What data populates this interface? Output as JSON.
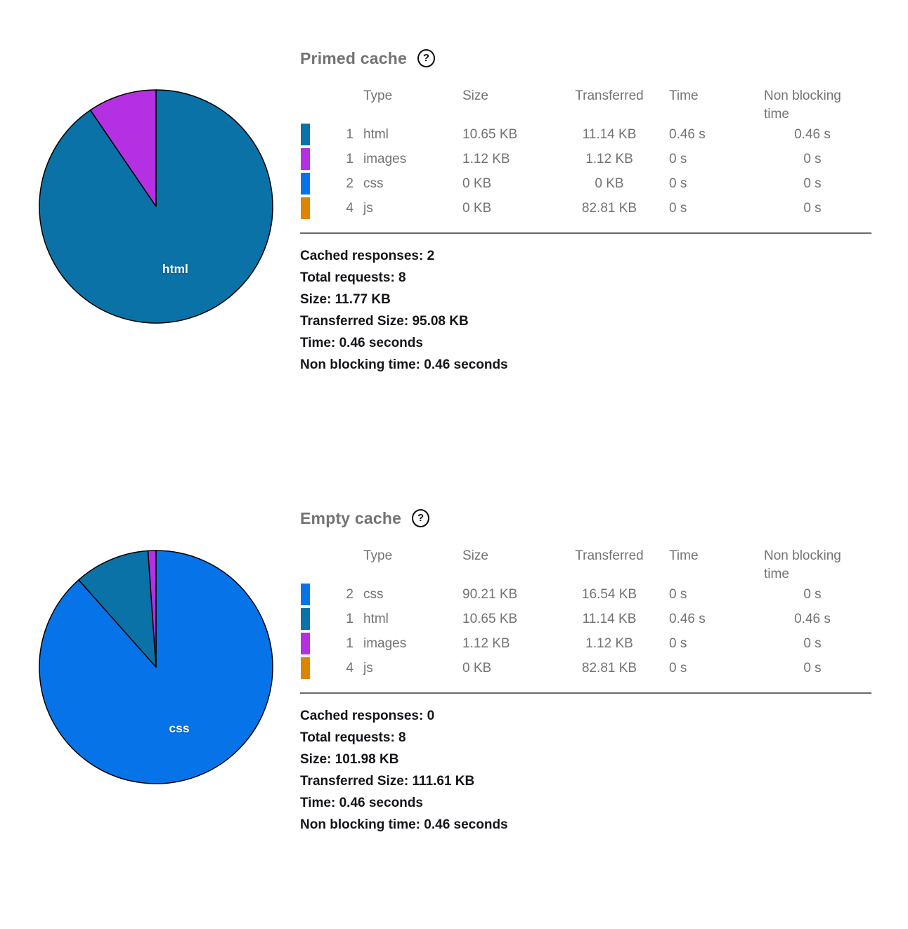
{
  "page": {
    "background": "#ffffff"
  },
  "colors": {
    "type_html": "#0a72a6",
    "type_images": "#b52fe3",
    "type_css": "#0674e8",
    "type_js": "#dd8400",
    "text_muted": "#737373",
    "text_dark": "#15141a",
    "divider": "#6a6a6d",
    "pie_stroke": "#000000",
    "pie_label": "#ffffff"
  },
  "sections": [
    {
      "title": "Primed cache",
      "help_icon": "?",
      "table": {
        "columns": [
          "Type",
          "Size",
          "Transferred",
          "Time",
          "Non blocking time"
        ],
        "rows": [
          {
            "count": "1",
            "type": "html",
            "size": "10.65 KB",
            "transferred": "11.14 KB",
            "time": "0.46 s",
            "non_blocking_time": "0.46 s",
            "color": "#0a72a6"
          },
          {
            "count": "1",
            "type": "images",
            "size": "1.12 KB",
            "transferred": "1.12 KB",
            "time": "0 s",
            "non_blocking_time": "0 s",
            "color": "#b52fe3"
          },
          {
            "count": "2",
            "type": "css",
            "size": "0 KB",
            "transferred": "0 KB",
            "time": "0 s",
            "non_blocking_time": "0 s",
            "color": "#0674e8"
          },
          {
            "count": "4",
            "type": "js",
            "size": "0 KB",
            "transferred": "82.81 KB",
            "time": "0 s",
            "non_blocking_time": "0 s",
            "color": "#dd8400"
          }
        ]
      },
      "summary": [
        "Cached responses: 2",
        "Total requests: 8",
        "Size: 11.77 KB",
        "Transferred Size: 95.08 KB",
        "Time: 0.46 seconds",
        "Non blocking time: 0.46 seconds"
      ]
    },
    {
      "title": "Empty cache",
      "help_icon": "?",
      "table": {
        "columns": [
          "Type",
          "Size",
          "Transferred",
          "Time",
          "Non blocking time"
        ],
        "rows": [
          {
            "count": "2",
            "type": "css",
            "size": "90.21 KB",
            "transferred": "16.54 KB",
            "time": "0 s",
            "non_blocking_time": "0 s",
            "color": "#0674e8"
          },
          {
            "count": "1",
            "type": "html",
            "size": "10.65 KB",
            "transferred": "11.14 KB",
            "time": "0.46 s",
            "non_blocking_time": "0.46 s",
            "color": "#0a72a6"
          },
          {
            "count": "1",
            "type": "images",
            "size": "1.12 KB",
            "transferred": "1.12 KB",
            "time": "0 s",
            "non_blocking_time": "0 s",
            "color": "#b52fe3"
          },
          {
            "count": "4",
            "type": "js",
            "size": "0 KB",
            "transferred": "82.81 KB",
            "time": "0 s",
            "non_blocking_time": "0 s",
            "color": "#dd8400"
          }
        ]
      },
      "summary": [
        "Cached responses: 0",
        "Total requests: 8",
        "Size: 101.98 KB",
        "Transferred Size: 111.61 KB",
        "Time: 0.46 seconds",
        "Non blocking time: 0.46 seconds"
      ]
    }
  ],
  "chart_data": [
    {
      "type": "pie",
      "title": "Primed cache",
      "unit": "KB",
      "labels": [
        "html",
        "images",
        "css",
        "js"
      ],
      "values": [
        10.65,
        1.12,
        0,
        0
      ],
      "colors": [
        "#0a72a6",
        "#b52fe3",
        "#0674e8",
        "#dd8400"
      ],
      "label_shown": "html",
      "legend_position": "none",
      "start_angle_deg": -90,
      "direction": "clockwise"
    },
    {
      "type": "pie",
      "title": "Empty cache",
      "unit": "KB",
      "labels": [
        "css",
        "html",
        "images",
        "js"
      ],
      "values": [
        90.21,
        10.65,
        1.12,
        0
      ],
      "colors": [
        "#0674e8",
        "#0a72a6",
        "#b52fe3",
        "#dd8400"
      ],
      "label_shown": "css",
      "legend_position": "none",
      "start_angle_deg": -90,
      "direction": "clockwise"
    }
  ]
}
